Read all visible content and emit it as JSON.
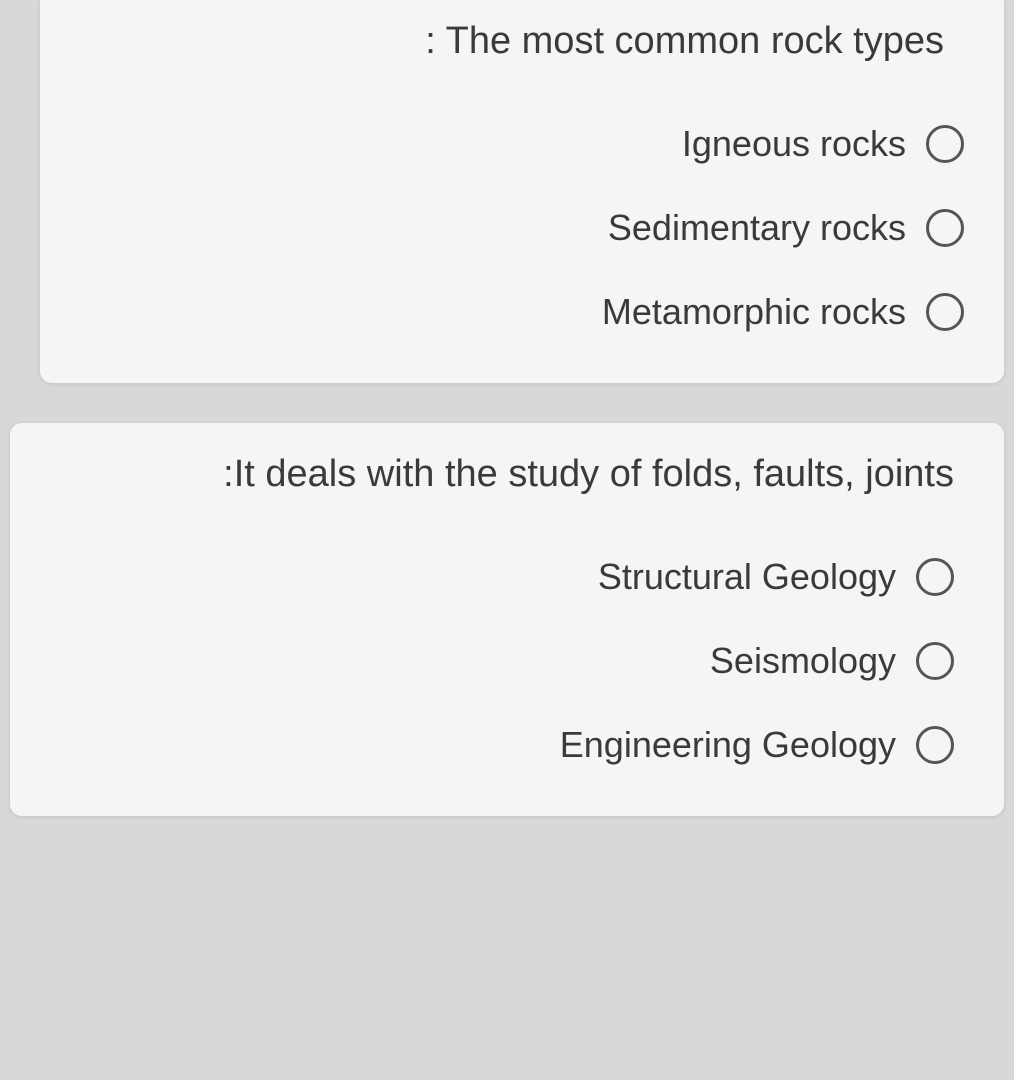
{
  "questions": [
    {
      "prompt": ": The most common rock types",
      "options": [
        {
          "label": "Igneous rocks"
        },
        {
          "label": "Sedimentary rocks"
        },
        {
          "label": "Metamorphic rocks"
        }
      ]
    },
    {
      "prompt": ":It deals with the study of folds, faults, joints",
      "options": [
        {
          "label": "Structural Geology"
        },
        {
          "label": "Seismology"
        },
        {
          "label": "Engineering Geology"
        }
      ]
    }
  ],
  "styling": {
    "background_color": "#d8d8d8",
    "card_background": "#f5f5f5",
    "text_color": "#3a3a3a",
    "radio_border_color": "#555555",
    "question_fontsize": 38,
    "option_fontsize": 36,
    "radio_size": 38,
    "radio_border_width": 3
  }
}
